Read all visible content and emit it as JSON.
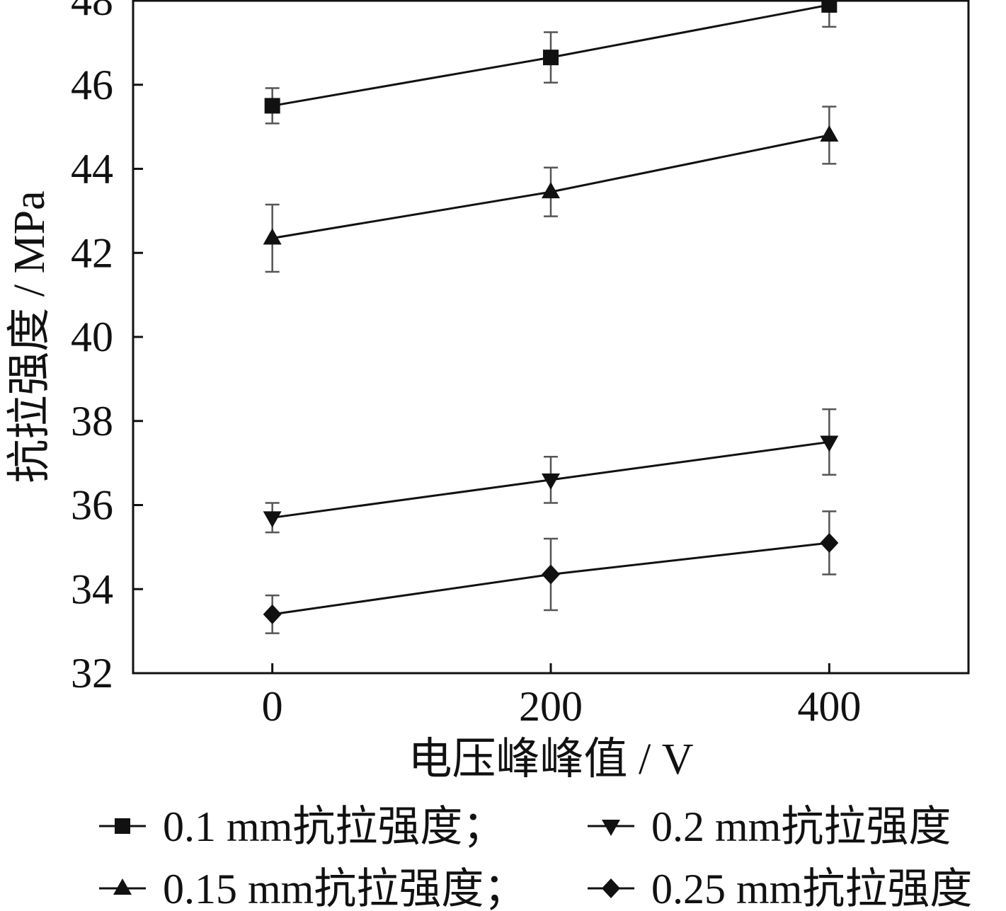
{
  "chart_data": {
    "type": "line",
    "title": "",
    "xlabel": "电压峰峰值 / V",
    "ylabel": "抗拉强度 / MPa",
    "x": [
      0,
      200,
      400
    ],
    "xlim": [
      -100,
      500
    ],
    "ylim": [
      32,
      48
    ],
    "xticks": [
      "0",
      "200",
      "400"
    ],
    "yticks": [
      "32",
      "34",
      "36",
      "38",
      "40",
      "42",
      "44",
      "46",
      "48"
    ],
    "grid": false,
    "legend_position": "bottom",
    "series": [
      {
        "name": "0.1 mm抗拉强度；",
        "marker": "square",
        "values": [
          45.5,
          46.65,
          47.9
        ],
        "errors": [
          0.42,
          0.6,
          0.52
        ]
      },
      {
        "name": "0.15 mm抗拉强度；",
        "marker": "triangle-up",
        "values": [
          42.35,
          43.45,
          44.8
        ],
        "errors": [
          0.8,
          0.58,
          0.68
        ]
      },
      {
        "name": "0.2 mm抗拉强度",
        "marker": "triangle-down",
        "values": [
          35.7,
          36.6,
          37.5
        ],
        "errors": [
          0.35,
          0.55,
          0.78
        ]
      },
      {
        "name": "0.25 mm抗拉强度",
        "marker": "diamond",
        "values": [
          33.4,
          34.35,
          35.1
        ],
        "errors": [
          0.45,
          0.85,
          0.75
        ]
      }
    ]
  },
  "colors": {
    "line": "#111111",
    "error_bar": "#555555",
    "background": "#ffffff"
  }
}
